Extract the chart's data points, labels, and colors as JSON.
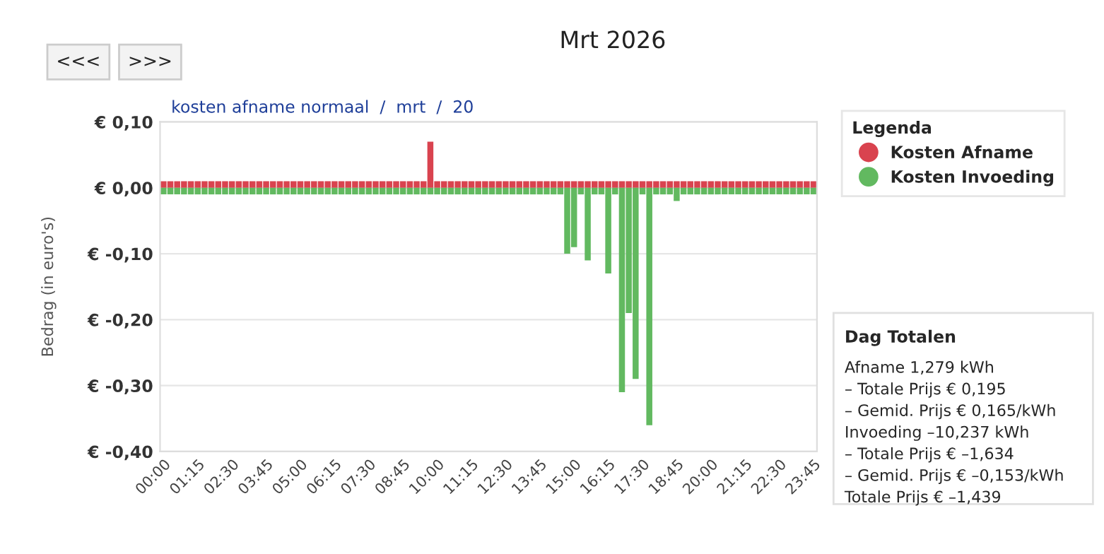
{
  "chart_data": {
    "type": "bar",
    "title": "Mrt 2026",
    "ylabel": "Bedrag (in euro's)",
    "legend_title": "Legenda",
    "stacked": true,
    "categories": [
      "00:00",
      null,
      null,
      null,
      null,
      "01:15",
      null,
      null,
      null,
      null,
      "02:30",
      null,
      null,
      null,
      null,
      "03:45",
      null,
      null,
      null,
      null,
      "05:00",
      null,
      null,
      null,
      null,
      "06:15",
      null,
      null,
      null,
      null,
      "07:30",
      null,
      null,
      null,
      null,
      "08:45",
      null,
      null,
      null,
      null,
      "10:00",
      null,
      null,
      null,
      null,
      "11:15",
      null,
      null,
      null,
      null,
      "12:30",
      null,
      null,
      null,
      null,
      "13:45",
      null,
      null,
      null,
      null,
      "15:00",
      null,
      null,
      null,
      null,
      "16:15",
      null,
      null,
      null,
      null,
      "17:30",
      null,
      null,
      null,
      null,
      "18:45",
      null,
      null,
      null,
      null,
      "20:00",
      null,
      null,
      null,
      null,
      "21:15",
      null,
      null,
      null,
      null,
      "22:30",
      null,
      null,
      null,
      null,
      "23:45"
    ],
    "series": [
      {
        "name": "Kosten Afname",
        "color": "#d9434f",
        "values": [
          0.01,
          0.01,
          0.01,
          0.01,
          0.01,
          0.01,
          0.01,
          0.01,
          0.01,
          0.01,
          0.01,
          0.01,
          0.01,
          0.01,
          0.01,
          0.01,
          0.01,
          0.01,
          0.01,
          0.01,
          0.01,
          0.01,
          0.01,
          0.01,
          0.01,
          0.01,
          0.01,
          0.01,
          0.01,
          0.01,
          0.01,
          0.01,
          0.01,
          0.01,
          0.01,
          0.01,
          0.01,
          0.01,
          0.01,
          0.07,
          0.01,
          0.01,
          0.01,
          0.01,
          0.01,
          0.01,
          0.01,
          0.01,
          0.01,
          0.01,
          0.01,
          0.01,
          0.01,
          0.01,
          0.01,
          0.01,
          0.01,
          0.01,
          0.01,
          0.01,
          0.01,
          0.01,
          0.01,
          0.01,
          0.01,
          0.01,
          0.01,
          0.01,
          0.01,
          0.01,
          0.01,
          0.01,
          0.01,
          0.01,
          0.01,
          0.01,
          0.01,
          0.01,
          0.01,
          0.01,
          0.01,
          0.01,
          0.01,
          0.01,
          0.01,
          0.01,
          0.01,
          0.01,
          0.01,
          0.01,
          0.01,
          0.01,
          0.01,
          0.01,
          0.01,
          0.01
        ]
      },
      {
        "name": "Kosten Invoeding",
        "color": "#62b960",
        "values": [
          -0.01,
          -0.01,
          -0.01,
          -0.01,
          -0.01,
          -0.01,
          -0.01,
          -0.01,
          -0.01,
          -0.01,
          -0.01,
          -0.01,
          -0.01,
          -0.01,
          -0.01,
          -0.01,
          -0.01,
          -0.01,
          -0.01,
          -0.01,
          -0.01,
          -0.01,
          -0.01,
          -0.01,
          -0.01,
          -0.01,
          -0.01,
          -0.01,
          -0.01,
          -0.01,
          -0.01,
          -0.01,
          -0.01,
          -0.01,
          -0.01,
          -0.01,
          -0.01,
          -0.01,
          -0.01,
          -0.01,
          -0.01,
          -0.01,
          -0.01,
          -0.01,
          -0.01,
          -0.01,
          -0.01,
          -0.01,
          -0.01,
          -0.01,
          -0.01,
          -0.01,
          -0.01,
          -0.01,
          -0.01,
          -0.01,
          -0.01,
          -0.01,
          -0.01,
          -0.1,
          -0.09,
          -0.01,
          -0.11,
          -0.01,
          -0.01,
          -0.13,
          -0.01,
          -0.31,
          -0.19,
          -0.29,
          -0.01,
          -0.36,
          -0.01,
          -0.01,
          -0.01,
          -0.02,
          -0.01,
          -0.01,
          -0.01,
          -0.01,
          -0.01,
          -0.01,
          -0.01,
          -0.01,
          -0.01,
          -0.01,
          -0.01,
          -0.01,
          -0.01,
          -0.01,
          -0.01,
          -0.01,
          -0.01,
          -0.01,
          -0.01,
          -0.01
        ]
      }
    ],
    "ylim": [
      -0.4,
      0.1
    ],
    "yticks": [
      {
        "value": -0.4,
        "label": "€ -0,40"
      },
      {
        "value": -0.3,
        "label": "€ -0,30"
      },
      {
        "value": -0.2,
        "label": "€ -0,20"
      },
      {
        "value": -0.1,
        "label": "€ -0,10"
      },
      {
        "value": 0,
        "label": "€ 0,00"
      },
      {
        "value": 0.1,
        "label": "€ 0,10"
      }
    ],
    "grid": "y",
    "legend": "right",
    "annotations": [
      "<<<",
      ">>>",
      "kosten afname normaal  /  mrt  /  20",
      "Dag Totalen",
      "Afname 1,279 kWh",
      "– Totale Prijs € 0,195",
      "– Gemid. Prijs € 0,165/kWh",
      "Invoeding –10,237 kWh",
      "– Totale Prijs € –1,634",
      "– Gemid. Prijs € –0,153/kWh",
      "Totale Prijs € –1,439"
    ]
  }
}
